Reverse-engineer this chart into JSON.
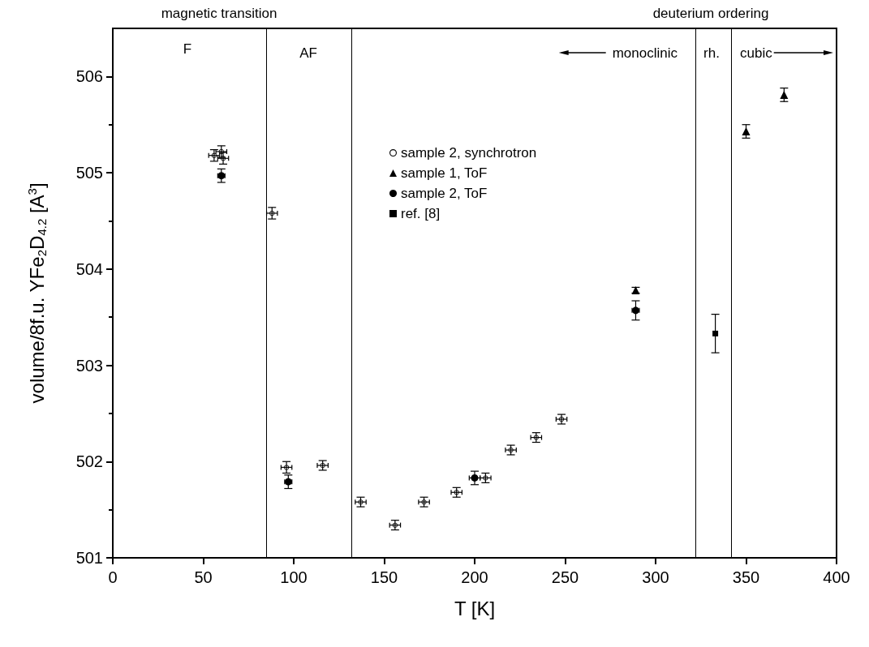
{
  "chart_data": {
    "type": "scatter",
    "xlabel": "T [K]",
    "ylabel": "volume/8f.u. YFe$_{2}$D$_{4.2}$ [A$^{3}$]",
    "xlim": [
      0,
      400
    ],
    "xticks": [
      0,
      50,
      100,
      150,
      200,
      250,
      300,
      350,
      400
    ],
    "ylim": [
      501,
      506.5
    ],
    "yticks": [
      501,
      502,
      503,
      504,
      505,
      506
    ],
    "grid": false,
    "legend": "top",
    "series": [
      {
        "name": "sample 2, synchrotron",
        "color": "#000000",
        "marker": "circle-open",
        "x": [
          56,
          60,
          61,
          88,
          96,
          116,
          137,
          156,
          172,
          190,
          206,
          220,
          234,
          248
        ],
        "values": [
          505.18,
          505.22,
          505.15,
          504.58,
          501.94,
          501.96,
          501.58,
          501.34,
          501.58,
          501.68,
          501.83,
          502.12,
          502.25,
          502.44
        ],
        "errors": [
          0.06,
          0.06,
          0.06,
          0.06,
          0.06,
          0.05,
          0.05,
          0.05,
          0.05,
          0.05,
          0.05,
          0.05,
          0.05,
          0.05
        ],
        "xerrors": [
          3,
          3,
          3,
          3,
          3,
          3,
          3,
          3,
          3,
          3,
          3,
          3,
          3,
          3
        ]
      },
      {
        "name": "sample 1, ToF",
        "color": "#000000",
        "marker": "triangle",
        "x": [
          289,
          350,
          371
        ],
        "values": [
          503.78,
          505.43,
          505.81
        ],
        "errors": [
          0.03,
          0.07,
          0.07
        ]
      },
      {
        "name": "sample 2, ToF",
        "color": "#000000",
        "marker": "circle",
        "x": [
          60,
          97,
          200,
          289
        ],
        "values": [
          504.97,
          501.79,
          501.83,
          503.57
        ],
        "errors": [
          0.07,
          0.07,
          0.07,
          0.1
        ],
        "xerrors": [
          2,
          2,
          3,
          2
        ]
      },
      {
        "name": "ref. [8]",
        "color": "#000000",
        "marker": "square",
        "x": [
          333
        ],
        "values": [
          503.33
        ],
        "errors": [
          0.2
        ]
      }
    ],
    "ref_lines": [
      {
        "axis": "x",
        "value": 85,
        "label": null
      },
      {
        "axis": "x",
        "value": 132,
        "label": null
      },
      {
        "axis": "x",
        "value": 322,
        "label": null
      },
      {
        "axis": "x",
        "value": 342,
        "label": null
      }
    ],
    "annotations": [
      "magnetic transition",
      "deuterium ordering",
      "F",
      "AF",
      "monoclinic",
      "rh.",
      "cubic"
    ]
  }
}
